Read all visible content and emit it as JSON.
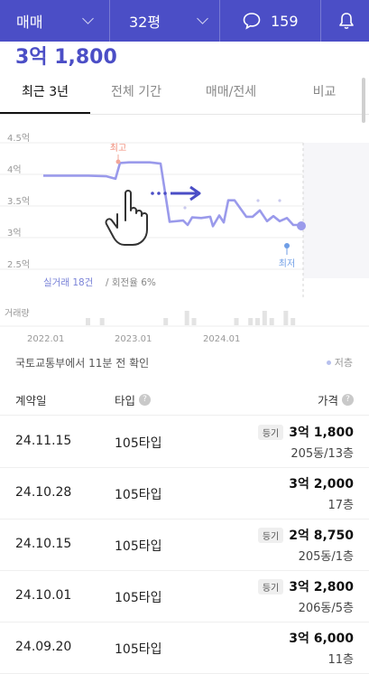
{
  "topbar": {
    "deal_type": "매매",
    "area": "32평",
    "comment_count": "159"
  },
  "price_headline": "3억 1,800",
  "tabs": [
    "최근 3년",
    "전체 기간",
    "매매/전세",
    "비교"
  ],
  "chart_data": {
    "type": "line",
    "ylabels": [
      "4.5억",
      "4억",
      "3.5억",
      "3억",
      "2.5억"
    ],
    "ylim": [
      2.5,
      4.5
    ],
    "xlabels": [
      "2022.01",
      "2023.01",
      "2024.01"
    ],
    "high_label": "최고",
    "low_label": "최저",
    "trade_summary": "실거래 18건",
    "turnover": "/ 회전율 6%",
    "volume_label": "거래량",
    "series": [
      {
        "x": [
          0,
          50,
          70,
          80,
          85,
          95,
          100,
          118,
          130,
          140,
          155,
          160,
          165,
          175,
          185,
          188,
          195,
          200,
          205,
          212,
          225,
          232,
          240,
          248,
          255,
          262,
          270,
          277,
          285,
          290
        ],
        "values": [
          3.98,
          3.98,
          3.97,
          3.93,
          4.18,
          4.19,
          4.19,
          4.19,
          4.17,
          3.25,
          3.27,
          3.2,
          3.32,
          3.31,
          3.33,
          3.18,
          3.35,
          3.24,
          3.59,
          3.59,
          3.33,
          3.33,
          3.43,
          3.26,
          3.34,
          3.26,
          3.31,
          3.2,
          3.2,
          3.18
        ]
      }
    ],
    "volume": [
      0,
      0,
      0,
      0,
      0,
      0,
      1,
      0,
      1,
      0,
      0,
      0,
      0,
      0,
      0,
      0,
      0,
      1,
      0,
      0,
      2,
      1,
      0,
      0,
      0,
      0,
      0,
      1,
      0,
      1,
      1,
      2,
      1,
      0,
      2,
      1
    ],
    "accent": "#9a9aeb",
    "high_color": "#f2a79a",
    "low_color": "#6f9ee6"
  },
  "notice": "국토교통부에서 11분 전 확인",
  "legend_low": "저층",
  "table": {
    "headers": [
      "계약일",
      "타입",
      "가격"
    ],
    "rows": [
      {
        "date": "24.11.15",
        "type": "105타입",
        "badge": "등기",
        "price": "3억 1,800",
        "detail": "205동/13층"
      },
      {
        "date": "24.10.28",
        "type": "105타입",
        "badge": "",
        "price": "3억 2,000",
        "detail": "17층"
      },
      {
        "date": "24.10.15",
        "type": "105타입",
        "badge": "등기",
        "price": "2억 8,750",
        "detail": "205동/1층"
      },
      {
        "date": "24.10.01",
        "type": "105타입",
        "badge": "등기",
        "price": "3억 2,800",
        "detail": "206동/5층"
      },
      {
        "date": "24.09.20",
        "type": "105타입",
        "badge": "",
        "price": "3억 6,000",
        "detail": "11층"
      }
    ]
  },
  "colors": {
    "brand": "#4b4ec6",
    "accent": "#9a9aeb"
  }
}
